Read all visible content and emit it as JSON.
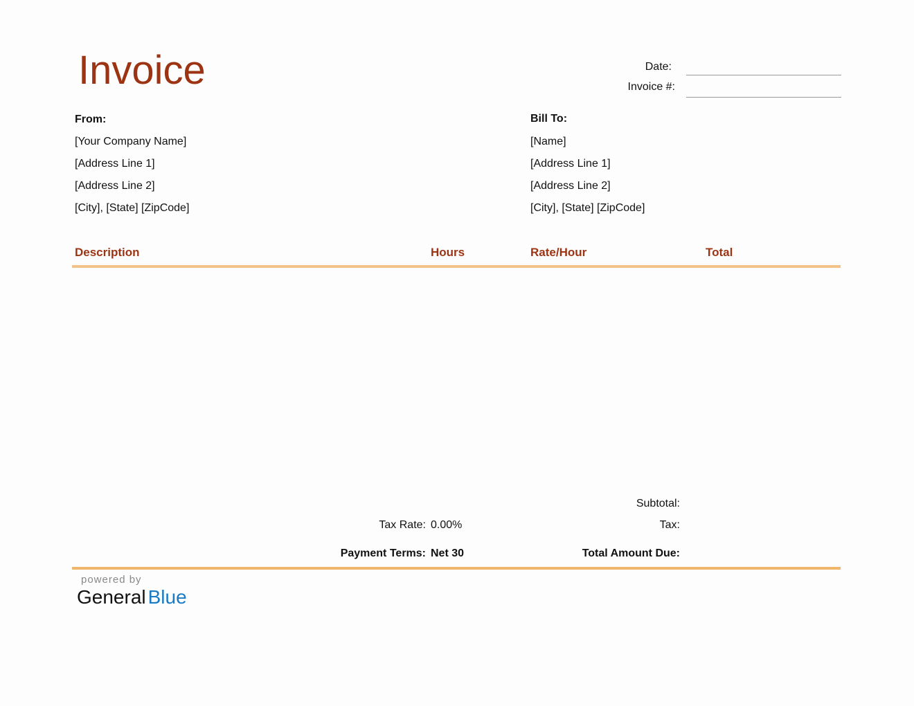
{
  "title": "Invoice",
  "meta": {
    "date_label": "Date:",
    "invoice_no_label": "Invoice #:"
  },
  "from": {
    "label": "From:",
    "lines": [
      "[Your Company Name]",
      "[Address Line 1]",
      "[Address Line 2]",
      "[City], [State] [ZipCode]"
    ]
  },
  "bill_to": {
    "label": "Bill To:",
    "lines": [
      "[Name]",
      "[Address Line 1]",
      "[Address Line 2]",
      "[City], [State] [ZipCode]"
    ]
  },
  "table": {
    "columns": [
      "Description",
      "Hours",
      "Rate/Hour",
      "Total"
    ]
  },
  "summary": {
    "subtotal_label": "Subtotal:",
    "tax_rate_label": "Tax Rate:",
    "tax_rate_value": "0.00%",
    "tax_label": "Tax:",
    "payment_terms_label": "Payment Terms:",
    "payment_terms_value": "Net 30",
    "total_due_label": "Total Amount Due:"
  },
  "footer": {
    "powered_by": "powered by",
    "brand_part1": "General",
    "brand_part2": "Blue"
  },
  "colors": {
    "accent": "#9c3413",
    "rule": "#f2c386",
    "brand_blue": "#1a7bc4"
  }
}
